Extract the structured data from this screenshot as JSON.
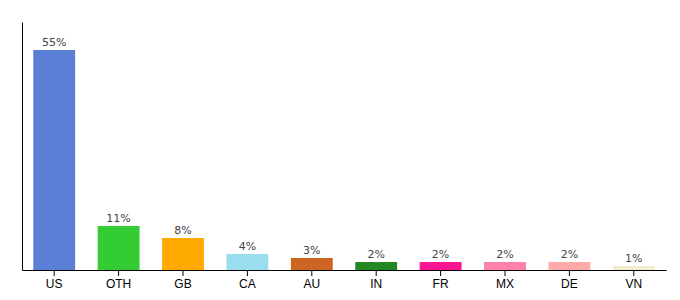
{
  "chart_data": {
    "type": "bar",
    "categories": [
      "US",
      "OTH",
      "GB",
      "CA",
      "AU",
      "IN",
      "FR",
      "MX",
      "DE",
      "VN"
    ],
    "values": [
      55,
      11,
      8,
      4,
      3,
      2,
      2,
      2,
      2,
      1
    ],
    "value_labels": [
      "55%",
      "11%",
      "8%",
      "4%",
      "3%",
      "2%",
      "2%",
      "2%",
      "2%",
      "1%"
    ],
    "colors": [
      "#5b7fd4",
      "#33cc33",
      "#ffaa00",
      "#99ddee",
      "#cc6622",
      "#228822",
      "#ff1493",
      "#ff80aa",
      "#ffaaaa",
      "#f0eecc"
    ],
    "ylim": [
      0,
      62
    ],
    "data_labels": true,
    "tick_labels": "x",
    "grid": false
  }
}
